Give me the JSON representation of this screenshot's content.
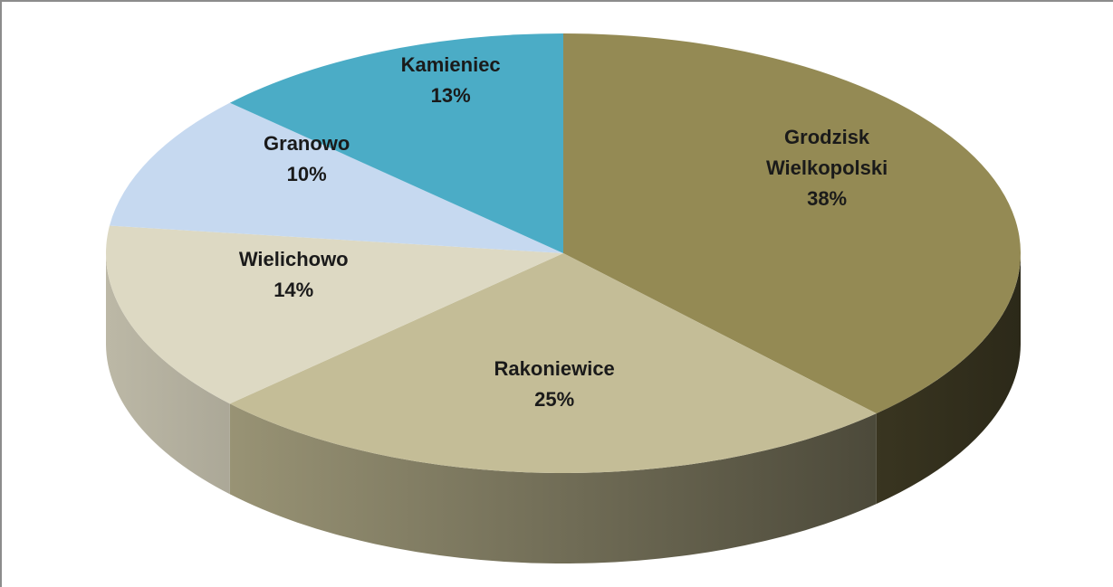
{
  "chart_data": {
    "type": "pie",
    "categories": [
      "Grodzisk Wielkopolski",
      "Rakoniewice",
      "Wielichowo",
      "Granowo",
      "Kamieniec"
    ],
    "values": [
      38,
      25,
      14,
      10,
      13
    ],
    "value_labels": [
      "38%",
      "25%",
      "14%",
      "10%",
      "13%"
    ],
    "colors": [
      "#948a54",
      "#c4bd97",
      "#ddd9c3",
      "#c6d9f0",
      "#4bacc6"
    ]
  }
}
